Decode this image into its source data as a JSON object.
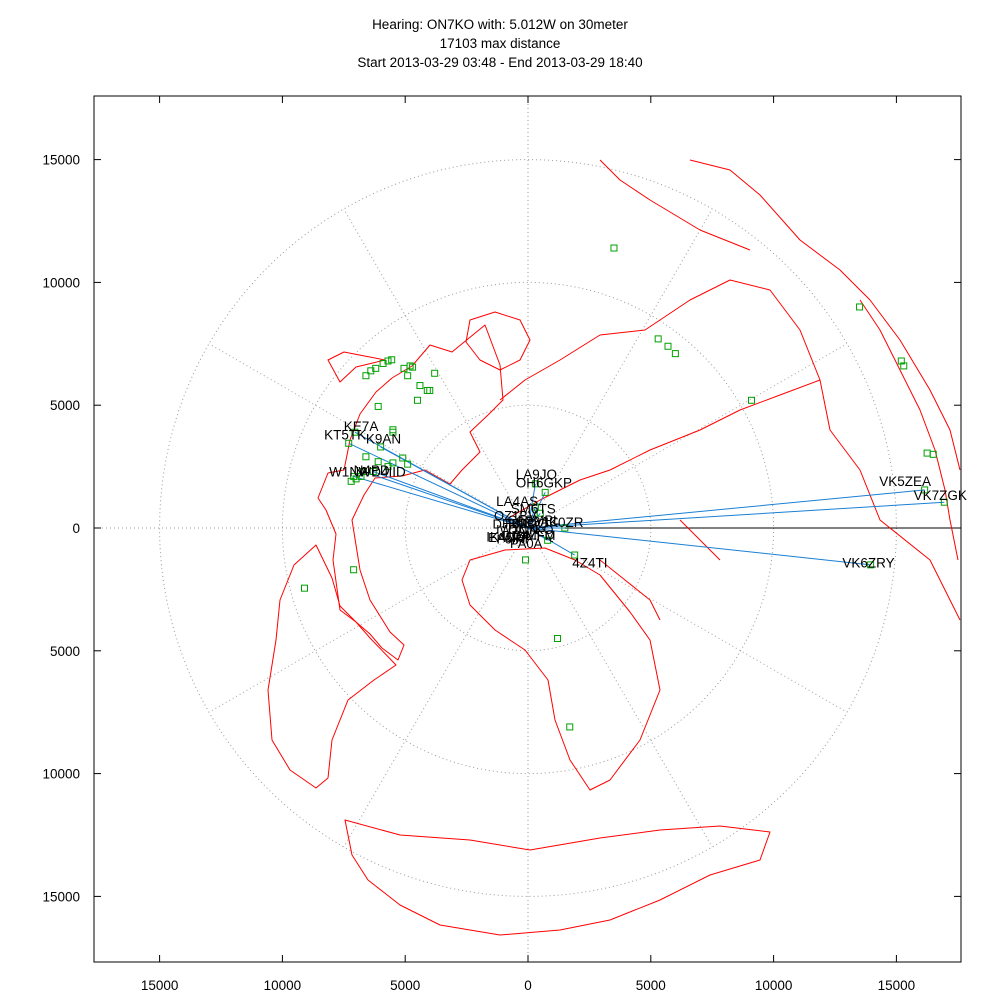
{
  "header": {
    "line1": "Hearing: ON7KO with: 5.012W on 30meter",
    "line2": "17103 max distance",
    "line3": "Start 2013-03-29 03:48 - End 2013-03-29 18:40"
  },
  "colors": {
    "coastline": "#ff0000",
    "path": "#1a7fd4",
    "station": "#00a000",
    "grid": "#999999",
    "frame": "#000000"
  },
  "map": {
    "projection": "azimuthal equidistant",
    "center_call": "ON7KO",
    "units": "km",
    "range": [
      -17500,
      17500
    ],
    "rings_km": [
      5000,
      10000,
      15000
    ],
    "spokes_deg": 30,
    "x_ticks": [
      "15000",
      "10000",
      "5000",
      "0",
      "5000",
      "10000",
      "15000"
    ],
    "y_ticks": [
      "15000",
      "10000",
      "5000",
      "0",
      "5000",
      "10000",
      "15000"
    ],
    "tick_values": [
      -15000,
      -10000,
      -5000,
      0,
      5000,
      10000,
      15000
    ]
  },
  "stations": [
    {
      "call": "KE7A",
      "x": -7050,
      "y": 3900,
      "lx": -7500,
      "ly": 3950
    },
    {
      "call": "KT5TK",
      "x": -7300,
      "y": 3450,
      "lx": -8300,
      "ly": 3600
    },
    {
      "call": "K9AN",
      "x": -6000,
      "y": 3300,
      "lx": -6600,
      "ly": 3450
    },
    {
      "call": "W1NA",
      "x": -7100,
      "y": 2100,
      "lx": -8100,
      "ly": 2100
    },
    {
      "call": "N4PD",
      "x": -6700,
      "y": 2300,
      "lx": -7100,
      "ly": 2150
    },
    {
      "call": "WD4IID",
      "x": -6300,
      "y": 2300,
      "lx": -6900,
      "ly": 2100
    },
    {
      "call": "LA9JO",
      "x": 300,
      "y": 1800,
      "lx": -500,
      "ly": 2000
    },
    {
      "call": "OH6GKP",
      "x": 700,
      "y": 1450,
      "lx": -500,
      "ly": 1650
    },
    {
      "call": "LA4AS",
      "x": 300,
      "y": 850,
      "lx": -1300,
      "ly": 900
    },
    {
      "call": "SM6TS",
      "x": 500,
      "y": 600,
      "lx": -700,
      "ly": 600
    },
    {
      "call": "IK0ZR",
      "x": 1500,
      "y": 0,
      "lx": 700,
      "ly": 50
    },
    {
      "call": "IK4UD",
      "x": 800,
      "y": -500,
      "lx": -1700,
      "ly": -550
    },
    {
      "call": "4Z4TI",
      "x": 1900,
      "y": -1100,
      "lx": 1800,
      "ly": -1600
    },
    {
      "call": "VK5ZEA",
      "x": 16150,
      "y": 1550,
      "lx": 14300,
      "ly": 1700
    },
    {
      "call": "VK7ZGK",
      "x": 16950,
      "y": 1050,
      "lx": 15700,
      "ly": 1150
    },
    {
      "call": "VK6ZRY",
      "x": 13950,
      "y": -1500,
      "lx": 12800,
      "ly": -1600
    }
  ],
  "unlabeled_spots": [
    [
      3500,
      11400
    ],
    [
      13500,
      9000
    ],
    [
      15200,
      6800
    ],
    [
      15300,
      6600
    ],
    [
      16250,
      3050
    ],
    [
      16500,
      3000
    ],
    [
      5300,
      7700
    ],
    [
      5700,
      7400
    ],
    [
      6000,
      7100
    ],
    [
      9100,
      5200
    ],
    [
      -5550,
      6850
    ],
    [
      -5700,
      6800
    ],
    [
      -5900,
      6700
    ],
    [
      -6200,
      6500
    ],
    [
      -6400,
      6400
    ],
    [
      -6600,
      6200
    ],
    [
      -5050,
      6500
    ],
    [
      -4800,
      6600
    ],
    [
      -4700,
      6550
    ],
    [
      -3800,
      6300
    ],
    [
      -4900,
      6200
    ],
    [
      -4400,
      5800
    ],
    [
      -4100,
      5600
    ],
    [
      -4000,
      5600
    ],
    [
      -4500,
      5200
    ],
    [
      -6100,
      4950
    ],
    [
      -5500,
      4000
    ],
    [
      -5500,
      3900
    ],
    [
      -5100,
      2850
    ],
    [
      -5500,
      2650
    ],
    [
      -4900,
      2600
    ],
    [
      -5700,
      2500
    ],
    [
      -6100,
      2700
    ],
    [
      -6600,
      2900
    ],
    [
      -6800,
      2100
    ],
    [
      -7000,
      2000
    ],
    [
      -7200,
      1900
    ],
    [
      -7100,
      -1700
    ],
    [
      -9100,
      -2450
    ],
    [
      -100,
      -1300
    ],
    [
      1200,
      -4500
    ],
    [
      1700,
      -8100
    ]
  ],
  "cluster_labels": [
    "ON7KO",
    "G4ZFQ",
    "PA0A",
    "DL4MFM",
    "F6IRF",
    "EA5RP",
    "IW1QN",
    "DJ8MS",
    "OZ1BV",
    "HB9QQ",
    "OE5MPL",
    "SP3AC"
  ]
}
